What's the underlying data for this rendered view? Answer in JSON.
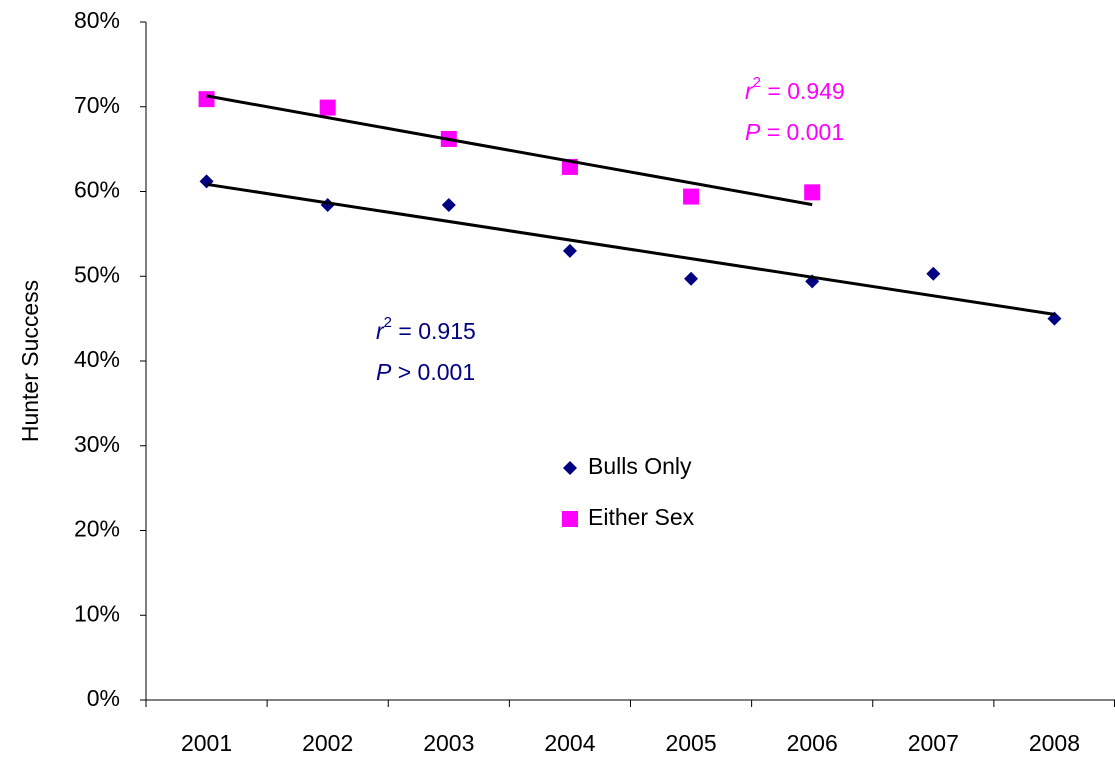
{
  "chart_data": {
    "type": "scatter",
    "ylabel": "Hunter Success",
    "categories": [
      "2001",
      "2002",
      "2003",
      "2004",
      "2005",
      "2006",
      "2007",
      "2008"
    ],
    "series": [
      {
        "name": "Bulls Only",
        "color": "#000080",
        "marker": "diamond",
        "trendline": true,
        "values": [
          61.2,
          58.4,
          58.4,
          53.0,
          49.7,
          49.4,
          50.3,
          45.0
        ],
        "annotation": [
          {
            "italic": "r",
            "sup": "2",
            "text": " = 0.915"
          },
          {
            "italic": "P",
            "text": " > 0.001"
          }
        ]
      },
      {
        "name": "Either Sex",
        "color": "#ff00ff",
        "marker": "square",
        "trendline": true,
        "values": [
          70.9,
          69.9,
          66.2,
          62.9,
          59.4,
          59.9,
          null,
          null
        ],
        "annotation": [
          {
            "italic": "r",
            "sup": "2",
            "text": " = 0.949"
          },
          {
            "italic": "P",
            "text": " = 0.001"
          }
        ]
      }
    ],
    "ylim": [
      0,
      80
    ],
    "yticks": [
      {
        "value": 0,
        "label": "0%"
      },
      {
        "value": 10,
        "label": "10%"
      },
      {
        "value": 20,
        "label": "20%"
      },
      {
        "value": 30,
        "label": "30%"
      },
      {
        "value": 40,
        "label": "40%"
      },
      {
        "value": 50,
        "label": "50%"
      },
      {
        "value": 60,
        "label": "60%"
      },
      {
        "value": 70,
        "label": "70%"
      },
      {
        "value": 80,
        "label": "80%"
      }
    ],
    "grid": false
  }
}
